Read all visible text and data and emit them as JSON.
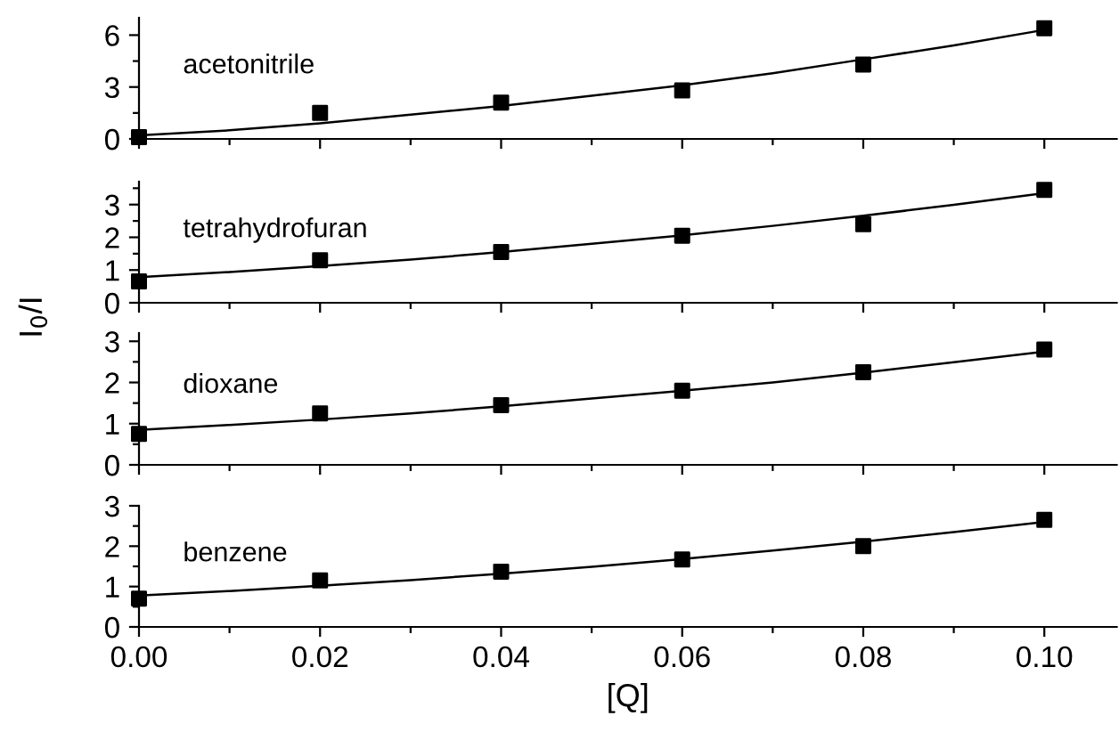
{
  "chart_data": [
    {
      "type": "scatter",
      "annotations": [
        "acetonitrile"
      ],
      "xlim": [
        0,
        0.108
      ],
      "ylim": [
        0,
        7
      ],
      "yticks": [
        0,
        {
          "value": 1.5,
          "label": null
        },
        3,
        {
          "value": 4.5,
          "label": null
        },
        6
      ],
      "xticks": [
        {
          "value": 0,
          "label": null
        },
        {
          "value": 0.01,
          "label": null
        },
        {
          "value": 0.02,
          "label": null
        },
        {
          "value": 0.03,
          "label": null
        },
        {
          "value": 0.04,
          "label": null
        },
        {
          "value": 0.05,
          "label": null
        },
        {
          "value": 0.06,
          "label": null
        },
        {
          "value": 0.07,
          "label": null
        },
        {
          "value": 0.08,
          "label": null
        },
        {
          "value": 0.09,
          "label": null
        },
        {
          "value": 0.1,
          "label": null
        }
      ],
      "tick_labels": "y",
      "marker": "square",
      "grid": false,
      "series": [
        {
          "color": "#000000",
          "x": [
            0,
            0.02,
            0.04,
            0.06,
            0.08,
            0.1
          ],
          "values": [
            0.1,
            1.5,
            2.1,
            2.8,
            4.3,
            6.4
          ]
        },
        {
          "type": "line",
          "color": "#000000",
          "marker": "none",
          "x": [
            0,
            0.01,
            0.02,
            0.03,
            0.04,
            0.05,
            0.06,
            0.07,
            0.08,
            0.09,
            0.1
          ],
          "values": [
            0.2,
            0.5,
            0.9,
            1.4,
            1.9,
            2.5,
            3.1,
            3.8,
            4.6,
            5.4,
            6.3
          ]
        }
      ]
    },
    {
      "type": "scatter",
      "annotations": [
        "tetrahydrofuran"
      ],
      "ylabel": "I$_{0}$/I",
      "xlim": [
        0,
        0.108
      ],
      "ylim": [
        0,
        3.7
      ],
      "yticks": [
        0,
        {
          "value": 0.5,
          "label": null
        },
        1,
        {
          "value": 1.5,
          "label": null
        },
        2,
        {
          "value": 2.5,
          "label": null
        },
        3,
        {
          "value": 3.5,
          "label": null
        }
      ],
      "xticks": [
        {
          "value": 0,
          "label": null
        },
        {
          "value": 0.01,
          "label": null
        },
        {
          "value": 0.02,
          "label": null
        },
        {
          "value": 0.03,
          "label": null
        },
        {
          "value": 0.04,
          "label": null
        },
        {
          "value": 0.05,
          "label": null
        },
        {
          "value": 0.06,
          "label": null
        },
        {
          "value": 0.07,
          "label": null
        },
        {
          "value": 0.08,
          "label": null
        },
        {
          "value": 0.09,
          "label": null
        },
        {
          "value": 0.1,
          "label": null
        }
      ],
      "tick_labels": "y",
      "marker": "square",
      "grid": false,
      "series": [
        {
          "color": "#000000",
          "x": [
            0,
            0.02,
            0.04,
            0.06,
            0.08,
            0.1
          ],
          "values": [
            0.65,
            1.3,
            1.55,
            2.05,
            2.4,
            3.45
          ]
        },
        {
          "type": "line",
          "color": "#000000",
          "marker": "none",
          "x": [
            0,
            0.01,
            0.02,
            0.03,
            0.04,
            0.05,
            0.06,
            0.07,
            0.08,
            0.09,
            0.1
          ],
          "values": [
            0.78,
            0.94,
            1.12,
            1.32,
            1.55,
            1.8,
            2.06,
            2.35,
            2.66,
            2.99,
            3.35
          ]
        }
      ]
    },
    {
      "type": "scatter",
      "annotations": [
        "dioxane"
      ],
      "xlim": [
        0,
        0.108
      ],
      "ylim": [
        0,
        3.2
      ],
      "yticks": [
        0,
        {
          "value": 0.5,
          "label": null
        },
        1,
        {
          "value": 1.5,
          "label": null
        },
        2,
        {
          "value": 2.5,
          "label": null
        },
        3
      ],
      "xticks": [
        {
          "value": 0,
          "label": null
        },
        {
          "value": 0.01,
          "label": null
        },
        {
          "value": 0.02,
          "label": null
        },
        {
          "value": 0.03,
          "label": null
        },
        {
          "value": 0.04,
          "label": null
        },
        {
          "value": 0.05,
          "label": null
        },
        {
          "value": 0.06,
          "label": null
        },
        {
          "value": 0.07,
          "label": null
        },
        {
          "value": 0.08,
          "label": null
        },
        {
          "value": 0.09,
          "label": null
        },
        {
          "value": 0.1,
          "label": null
        }
      ],
      "tick_labels": "y",
      "marker": "square",
      "grid": false,
      "series": [
        {
          "color": "#000000",
          "x": [
            0,
            0.02,
            0.04,
            0.06,
            0.08,
            0.1
          ],
          "values": [
            0.75,
            1.25,
            1.45,
            1.8,
            2.25,
            2.8
          ]
        },
        {
          "type": "line",
          "color": "#000000",
          "marker": "none",
          "x": [
            0,
            0.01,
            0.02,
            0.03,
            0.04,
            0.05,
            0.06,
            0.07,
            0.08,
            0.09,
            0.1
          ],
          "values": [
            0.85,
            0.97,
            1.1,
            1.25,
            1.42,
            1.61,
            1.8,
            2.0,
            2.24,
            2.49,
            2.75
          ]
        }
      ]
    },
    {
      "type": "scatter",
      "annotations": [
        "benzene"
      ],
      "xlabel": "[Q]",
      "xlim": [
        0,
        0.108
      ],
      "ylim": [
        0,
        3.0
      ],
      "yticks": [
        0,
        {
          "value": 0.5,
          "label": null
        },
        1,
        {
          "value": 1.5,
          "label": null
        },
        2,
        {
          "value": 2.5,
          "label": null
        },
        3
      ],
      "xticks": [
        {
          "value": 0,
          "label": "0.00"
        },
        {
          "value": 0.01,
          "label": null
        },
        {
          "value": 0.02,
          "label": "0.02"
        },
        {
          "value": 0.03,
          "label": null
        },
        {
          "value": 0.04,
          "label": "0.04"
        },
        {
          "value": 0.05,
          "label": null
        },
        {
          "value": 0.06,
          "label": "0.06"
        },
        {
          "value": 0.07,
          "label": null
        },
        {
          "value": 0.08,
          "label": "0.08"
        },
        {
          "value": 0.09,
          "label": null
        },
        {
          "value": 0.1,
          "label": "0.10"
        }
      ],
      "marker": "square",
      "grid": false,
      "series": [
        {
          "color": "#000000",
          "x": [
            0,
            0.02,
            0.04,
            0.06,
            0.08,
            0.1
          ],
          "values": [
            0.7,
            1.15,
            1.37,
            1.67,
            2.0,
            2.65
          ]
        },
        {
          "type": "line",
          "color": "#000000",
          "marker": "none",
          "x": [
            0,
            0.01,
            0.02,
            0.03,
            0.04,
            0.05,
            0.06,
            0.07,
            0.08,
            0.09,
            0.1
          ],
          "values": [
            0.78,
            0.89,
            1.02,
            1.16,
            1.32,
            1.49,
            1.68,
            1.89,
            2.11,
            2.35,
            2.6
          ]
        }
      ]
    }
  ]
}
